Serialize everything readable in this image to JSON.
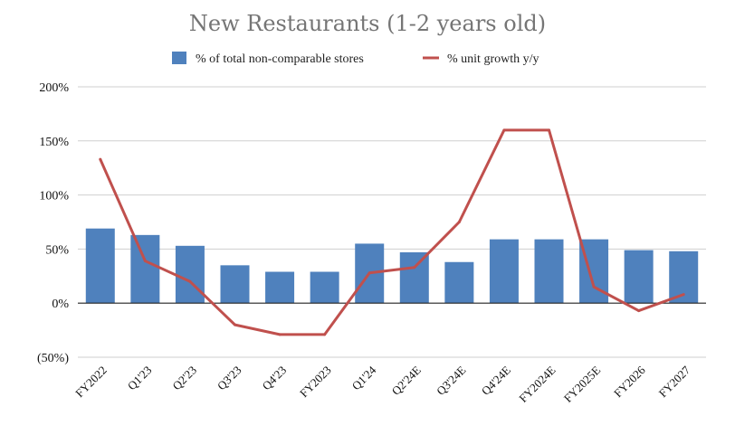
{
  "chart_data": {
    "type": "bar+line",
    "title": "New Restaurants (1-2 years old)",
    "categories": [
      "FY2022",
      "Q1'23",
      "Q2'23",
      "Q3'23",
      "Q4'23",
      "FY2023",
      "Q1'24",
      "Q2'24E",
      "Q3'24E",
      "Q4'24E",
      "FY2024E",
      "FY2025E",
      "FY2026",
      "FY2027"
    ],
    "series": [
      {
        "name": "% of total non-comparable stores",
        "kind": "bar",
        "color": "#4f81bd",
        "values": [
          69,
          63,
          53,
          35,
          29,
          29,
          55,
          47,
          38,
          59,
          59,
          59,
          49,
          48
        ]
      },
      {
        "name": "% unit growth y/y",
        "kind": "line",
        "color": "#c0504d",
        "values": [
          133,
          39,
          20,
          -20,
          -29,
          -29,
          28,
          33,
          75,
          160,
          160,
          15,
          -7,
          8
        ]
      }
    ],
    "ylim": [
      -50,
      200
    ],
    "yticks": [
      200,
      150,
      100,
      50,
      0,
      -50
    ],
    "ytick_labels": [
      "200%",
      "150%",
      "100%",
      "50%",
      "0%",
      "(50%)"
    ],
    "legend": "top-center",
    "grid": true
  }
}
